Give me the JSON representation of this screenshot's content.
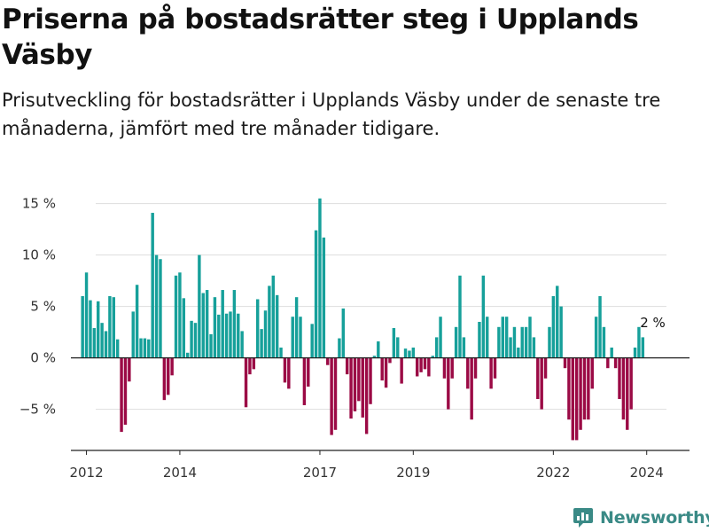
{
  "title": "Priserna på bostadsrätter steg i Upplands Väsby",
  "subtitle": "Prisutveckling för bostadsrätter i Upplands Väsby under de senaste tre månaderna, jämfört med tre månader tidigare.",
  "brand": {
    "name": "Newsworthy",
    "color": "#3a8a86"
  },
  "colors": {
    "positive": "#16a09a",
    "negative": "#9b0a45",
    "grid": "#dddddd",
    "axis": "#222222"
  },
  "chart_data": {
    "type": "bar",
    "title": "Priserna på bostadsrätter steg i Upplands Väsby",
    "xlabel": "",
    "ylabel": "",
    "ylim": [
      -9,
      16
    ],
    "xlim": [
      "2011-09",
      "2024-12"
    ],
    "y_ticks": [
      -5,
      0,
      5,
      10,
      15
    ],
    "y_tick_labels": [
      "−5 %",
      "0 %",
      "5 %",
      "10 %",
      "15 %"
    ],
    "x_ticks": [
      "2012-01",
      "2014-01",
      "2017-01",
      "2019-01",
      "2022-01",
      "2024-01"
    ],
    "x_tick_labels": [
      "2012",
      "2014",
      "2017",
      "2019",
      "2022",
      "2024"
    ],
    "grid": true,
    "annotation": {
      "label": "2 %",
      "x": "2024-03",
      "value": 2
    },
    "start": "2011-12",
    "values": [
      6.0,
      8.3,
      5.6,
      2.9,
      5.5,
      3.4,
      2.6,
      6.0,
      5.9,
      1.8,
      -7.2,
      -6.5,
      -2.3,
      4.5,
      7.1,
      1.9,
      1.9,
      1.8,
      14.1,
      10.0,
      9.6,
      -4.1,
      -3.6,
      -1.7,
      8.0,
      8.3,
      5.8,
      0.5,
      3.6,
      3.4,
      10.0,
      6.3,
      6.6,
      2.3,
      5.9,
      4.2,
      6.6,
      4.3,
      4.5,
      6.6,
      4.3,
      2.6,
      -4.8,
      -1.6,
      -1.1,
      5.7,
      2.8,
      4.6,
      7.0,
      8.0,
      6.1,
      1.0,
      -2.4,
      -3.0,
      4.0,
      5.9,
      4.0,
      -4.6,
      -2.8,
      3.3,
      12.4,
      15.5,
      11.7,
      -0.7,
      -7.5,
      -7.0,
      1.9,
      4.8,
      -1.6,
      -5.9,
      -5.2,
      -4.2,
      -5.8,
      -7.4,
      -4.5,
      0.2,
      1.6,
      -2.2,
      -2.9,
      -0.5,
      2.9,
      2.0,
      -2.5,
      0.9,
      0.7,
      1.0,
      -1.8,
      -1.4,
      -1.1,
      -1.8,
      0.2,
      2.0,
      4.0,
      -2.0,
      -5.0,
      -2.0,
      3.0,
      8.0,
      2.0,
      -3.0,
      -6.0,
      -2.0,
      3.5,
      8.0,
      4.0,
      -3.0,
      -2.0,
      3.0,
      4.0,
      4.0,
      2.0,
      3.0,
      1.0,
      3.0,
      3.0,
      4.0,
      2.0,
      -4.0,
      -5.0,
      -2.0,
      3.0,
      6.0,
      7.0,
      5.0,
      -1.0,
      -6.0,
      -8.0,
      -8.0,
      -7.0,
      -6.0,
      -6.0,
      -3.0,
      4.0,
      6.0,
      3.0,
      -1.0,
      1.0,
      -1.0,
      -4.0,
      -6.0,
      -7.0,
      -5.0,
      1.0,
      3.0,
      2.0
    ]
  }
}
